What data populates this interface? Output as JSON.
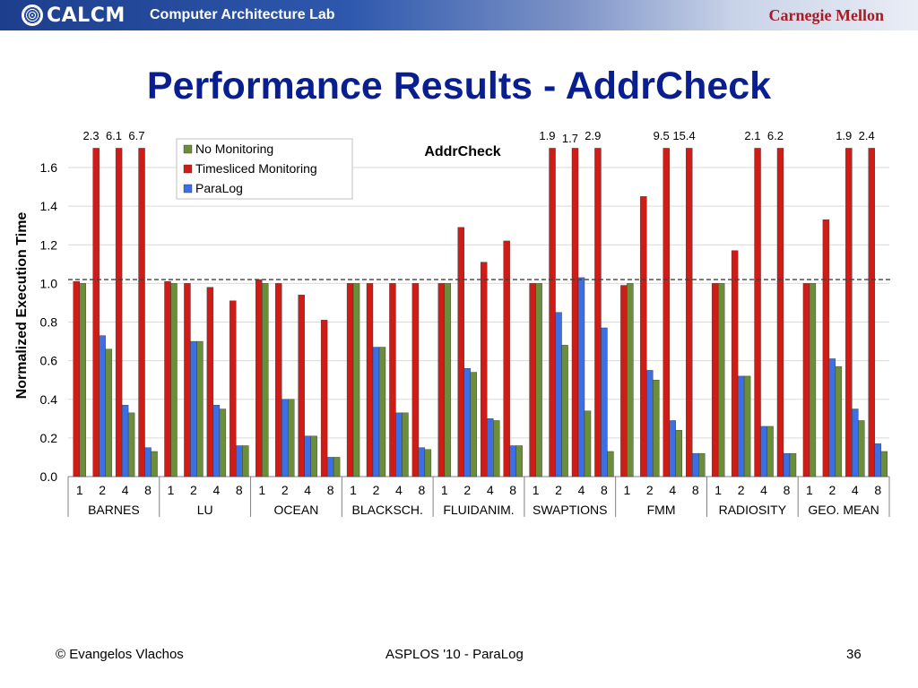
{
  "header": {
    "logo_text": "CALCM",
    "lab_name": "Computer Architecture Lab",
    "university": "Carnegie Mellon"
  },
  "slide": {
    "title": "Performance Results - AddrCheck"
  },
  "footer": {
    "author": "© Evangelos Vlachos",
    "venue": "ASPLOS '10 - ParaLog",
    "page": "36"
  },
  "colors": {
    "no_monitoring": "#6b8e3a",
    "timesliced": "#d01c17",
    "paralog": "#3b6fe3",
    "title": "#0a1f8f"
  },
  "chart_data": {
    "type": "bar",
    "title": "AddrCheck",
    "ylabel": "Normalized Execution Time",
    "xlabel": "",
    "ylim": [
      0,
      1.7
    ],
    "yticks": [
      "0.0",
      "0.2",
      "0.4",
      "0.6",
      "0.8",
      "1.0",
      "1.2",
      "1.4",
      "1.6"
    ],
    "reference_line": 1.02,
    "grid": true,
    "legend_position": "top-left",
    "thread_counts": [
      "1",
      "2",
      "4",
      "8"
    ],
    "groups": [
      {
        "name": "BARNES",
        "no_monitoring": [
          1.0,
          0.66,
          0.33,
          0.13
        ],
        "timesliced": [
          1.01,
          2.3,
          6.1,
          6.7
        ],
        "paralog": [
          null,
          0.73,
          0.37,
          0.15
        ],
        "labels": [
          null,
          "2.3",
          "6.1",
          "6.7"
        ]
      },
      {
        "name": "LU",
        "no_monitoring": [
          1.0,
          0.7,
          0.35,
          0.16
        ],
        "timesliced": [
          1.01,
          1.0,
          0.98,
          0.91
        ],
        "paralog": [
          null,
          0.7,
          0.37,
          0.16
        ],
        "labels": [
          null,
          null,
          null,
          null
        ]
      },
      {
        "name": "OCEAN",
        "no_monitoring": [
          1.0,
          0.4,
          0.21,
          0.1
        ],
        "timesliced": [
          1.02,
          1.0,
          0.94,
          0.81
        ],
        "paralog": [
          null,
          0.4,
          0.21,
          0.1
        ],
        "labels": [
          null,
          null,
          null,
          null
        ]
      },
      {
        "name": "BLACKSCH.",
        "no_monitoring": [
          1.0,
          0.67,
          0.33,
          0.14
        ],
        "timesliced": [
          1.0,
          1.0,
          1.0,
          1.0
        ],
        "paralog": [
          null,
          0.67,
          0.33,
          0.15
        ],
        "labels": [
          null,
          null,
          null,
          null
        ]
      },
      {
        "name": "FLUIDANIM.",
        "no_monitoring": [
          1.0,
          0.54,
          0.29,
          0.16
        ],
        "timesliced": [
          1.0,
          1.29,
          1.11,
          1.22
        ],
        "paralog": [
          null,
          0.56,
          0.3,
          0.16
        ],
        "labels": [
          null,
          null,
          null,
          null
        ]
      },
      {
        "name": "SWAPTIONS",
        "no_monitoring": [
          1.0,
          0.68,
          0.34,
          0.13
        ],
        "timesliced": [
          1.0,
          1.9,
          1.7,
          2.9
        ],
        "paralog": [
          null,
          0.85,
          1.03,
          0.77
        ],
        "labels": [
          null,
          "1.9",
          "1.7",
          "2.9"
        ]
      },
      {
        "name": "FMM",
        "no_monitoring": [
          1.0,
          0.5,
          0.24,
          0.12
        ],
        "timesliced": [
          0.99,
          1.45,
          9.5,
          15.4
        ],
        "paralog": [
          null,
          0.55,
          0.29,
          0.12
        ],
        "labels": [
          null,
          null,
          "9.5",
          "15.4"
        ]
      },
      {
        "name": "RADIOSITY",
        "no_monitoring": [
          1.0,
          0.52,
          0.26,
          0.12
        ],
        "timesliced": [
          1.0,
          1.17,
          2.1,
          6.2
        ],
        "paralog": [
          null,
          0.52,
          0.26,
          0.12
        ],
        "labels": [
          null,
          null,
          "2.1",
          "6.2"
        ]
      },
      {
        "name": "GEO. MEAN",
        "no_monitoring": [
          1.0,
          0.57,
          0.29,
          0.13
        ],
        "timesliced": [
          1.0,
          1.33,
          1.9,
          2.4
        ],
        "paralog": [
          null,
          0.61,
          0.35,
          0.17
        ],
        "labels": [
          null,
          null,
          "1.9",
          "2.4"
        ]
      }
    ],
    "series": [
      {
        "name": "No Monitoring",
        "key": "no_monitoring"
      },
      {
        "name": "Timesliced Monitoring",
        "key": "timesliced"
      },
      {
        "name": "ParaLog",
        "key": "paralog"
      }
    ]
  }
}
